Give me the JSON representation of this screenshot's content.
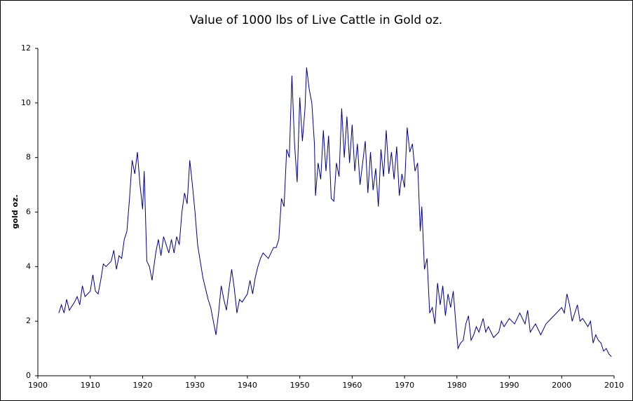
{
  "chart_data": {
    "type": "line",
    "title": "Value of 1000 lbs of Live Cattle in Gold oz.",
    "y_label": "gold oz.",
    "color": "#000080",
    "x": [
      1904,
      1904.5,
      1905,
      1905.5,
      1906,
      1907,
      1907.5,
      1908,
      1908.5,
      1909,
      1910,
      1910.5,
      1911,
      1911.5,
      1912,
      1912.5,
      1913,
      1914,
      1914.5,
      1915,
      1915.5,
      1916,
      1916.5,
      1917,
      1917.5,
      1918,
      1918.5,
      1919,
      1919.5,
      1920,
      1920.3,
      1920.8,
      1921.3,
      1921.8,
      1922.5,
      1923,
      1923.5,
      1924,
      1925,
      1925.5,
      1926,
      1926.5,
      1927,
      1927.5,
      1928,
      1928.5,
      1929,
      1929.5,
      1930,
      1930.5,
      1931,
      1931.5,
      1932,
      1932.5,
      1933,
      1934,
      1934.5,
      1935,
      1935.5,
      1936,
      1936.5,
      1937,
      1937.5,
      1938,
      1938.5,
      1939,
      1940,
      1940.5,
      1941,
      1941.5,
      1942,
      1942.5,
      1943,
      1944,
      1945,
      1945.5,
      1946,
      1946.5,
      1947,
      1947.5,
      1948,
      1948.5,
      1949,
      1949.5,
      1950,
      1950.5,
      1951,
      1951.3,
      1951.8,
      1952.3,
      1952.8,
      1953,
      1953.5,
      1954,
      1954.5,
      1955,
      1955.5,
      1956,
      1956.5,
      1957,
      1957.5,
      1958,
      1958.5,
      1959,
      1959.5,
      1960,
      1960.5,
      1961,
      1961.5,
      1962,
      1962.5,
      1963,
      1963.5,
      1964,
      1964.5,
      1965,
      1965.5,
      1966,
      1966.5,
      1967,
      1967.5,
      1968,
      1968.5,
      1969,
      1969.5,
      1970,
      1970.5,
      1971,
      1971.5,
      1972,
      1972.5,
      1973,
      1973.3,
      1973.8,
      1974.3,
      1974.8,
      1975.3,
      1975.8,
      1976.3,
      1976.8,
      1977.3,
      1977.8,
      1978.3,
      1978.8,
      1979.3,
      1979.8,
      1980.2,
      1980.7,
      1981.2,
      1981.7,
      1982.2,
      1982.7,
      1983.2,
      1983.7,
      1984.2,
      1985,
      1985.5,
      1986,
      1987,
      1988,
      1988.5,
      1989,
      1990,
      1991,
      1992,
      1993,
      1993.5,
      1994,
      1995,
      1996,
      1997,
      1998,
      1999,
      2000,
      2000.5,
      2001,
      2001.5,
      2002,
      2002.5,
      2003,
      2003.5,
      2004,
      2005,
      2005.5,
      2006,
      2006.5,
      2007,
      2007.5,
      2008,
      2008.5,
      2009,
      2009.5
    ],
    "values": [
      2.3,
      2.6,
      2.3,
      2.8,
      2.4,
      2.7,
      2.9,
      2.6,
      3.3,
      2.9,
      3.1,
      3.7,
      3.1,
      3.0,
      3.5,
      4.1,
      4.0,
      4.2,
      4.6,
      3.9,
      4.4,
      4.3,
      5.0,
      5.3,
      6.5,
      7.9,
      7.4,
      8.2,
      7.0,
      6.1,
      7.5,
      4.2,
      4.0,
      3.5,
      4.5,
      5.0,
      4.4,
      5.1,
      4.5,
      5.0,
      4.5,
      5.1,
      4.8,
      6.0,
      6.7,
      6.3,
      7.9,
      7.0,
      6.0,
      4.8,
      4.2,
      3.6,
      3.2,
      2.8,
      2.5,
      1.5,
      2.3,
      3.3,
      2.8,
      2.4,
      3.2,
      3.9,
      3.2,
      2.3,
      2.8,
      2.7,
      3.0,
      3.5,
      3.0,
      3.6,
      4.0,
      4.3,
      4.5,
      4.3,
      4.7,
      4.7,
      5.0,
      6.5,
      6.2,
      8.3,
      8.0,
      11.0,
      8.5,
      7.1,
      10.2,
      8.6,
      9.8,
      11.3,
      10.5,
      10.0,
      8.5,
      6.6,
      7.8,
      7.2,
      9.0,
      7.5,
      8.8,
      6.5,
      6.4,
      7.8,
      7.3,
      9.8,
      8.0,
      9.5,
      7.8,
      9.2,
      7.5,
      8.5,
      7.0,
      7.8,
      8.6,
      6.7,
      8.2,
      6.8,
      7.6,
      6.2,
      8.3,
      7.3,
      9.0,
      7.4,
      8.2,
      7.2,
      8.4,
      6.6,
      7.4,
      6.9,
      9.1,
      8.2,
      8.5,
      7.5,
      7.8,
      5.3,
      6.2,
      3.9,
      4.3,
      2.3,
      2.5,
      1.9,
      3.4,
      2.6,
      3.3,
      2.2,
      3.0,
      2.5,
      3.1,
      1.9,
      1.0,
      1.2,
      1.3,
      1.9,
      2.2,
      1.3,
      1.5,
      1.8,
      1.6,
      2.1,
      1.6,
      1.8,
      1.4,
      1.6,
      2.0,
      1.8,
      2.1,
      1.9,
      2.3,
      1.9,
      2.4,
      1.6,
      1.9,
      1.5,
      1.9,
      2.1,
      2.3,
      2.5,
      2.3,
      3.0,
      2.6,
      2.0,
      2.3,
      2.6,
      2.0,
      2.1,
      1.8,
      2.0,
      1.2,
      1.5,
      1.3,
      1.2,
      0.9,
      1.0,
      0.8,
      0.7
    ],
    "xlim": [
      1900,
      2010
    ],
    "xticks": [
      1900,
      1910,
      1920,
      1930,
      1940,
      1950,
      1960,
      1970,
      1980,
      1990,
      2000,
      2010
    ],
    "ylim": [
      0,
      12
    ],
    "yticks": [
      0,
      2,
      4,
      6,
      8,
      10,
      12
    ],
    "grid": false
  }
}
